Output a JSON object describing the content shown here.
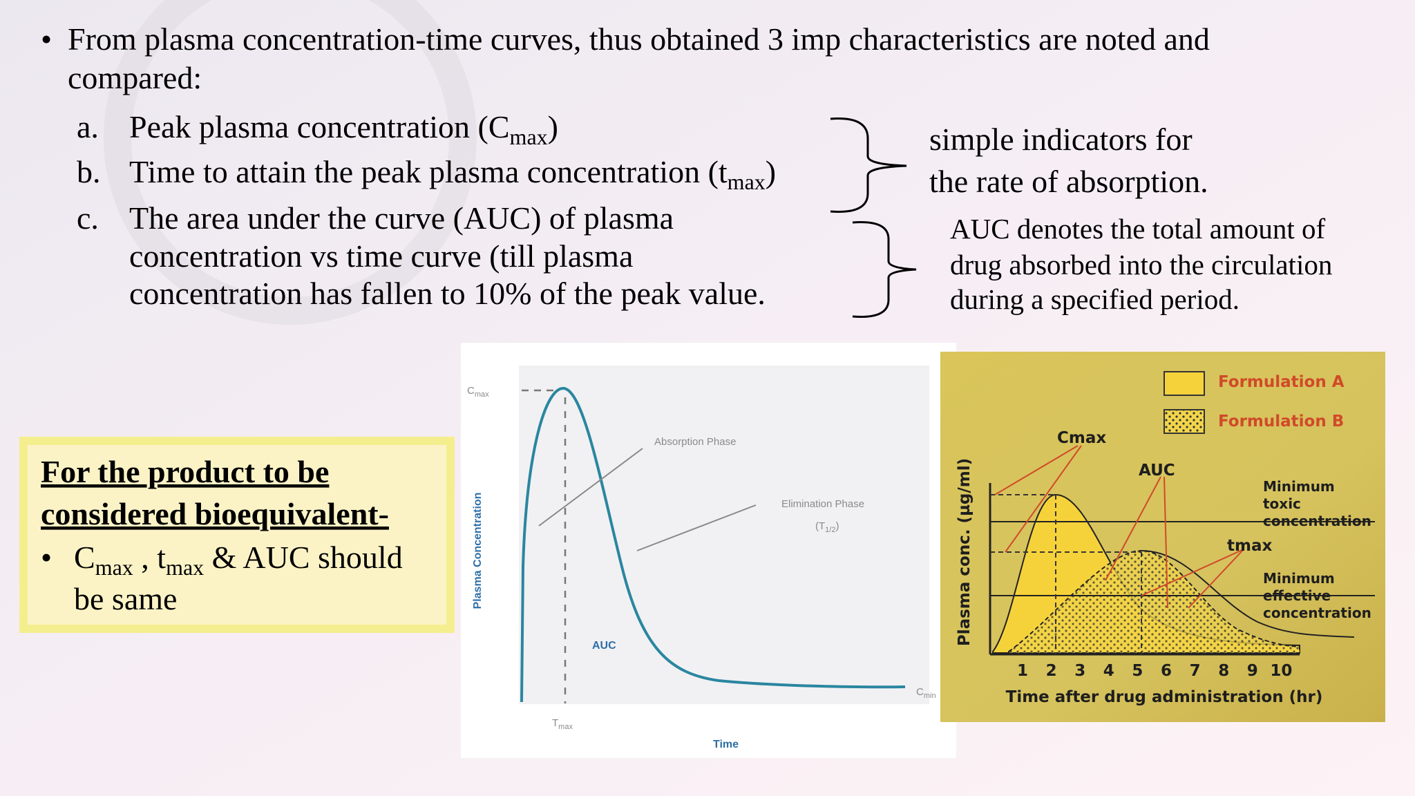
{
  "intro": {
    "bullet": "•",
    "lines": [
      "From plasma concentration-time curves, thus obtained 3 imp characteristics are noted and",
      "compared:"
    ]
  },
  "items": [
    {
      "marker": "a.",
      "text": "Peak plasma concentration (C",
      "sub": "max",
      "close": ")"
    },
    {
      "marker": "b.",
      "text": "Time to attain the peak plasma concentration (t",
      "sub": "max",
      "close": ")"
    },
    {
      "marker": "c.",
      "lines": [
        "The area under the curve (AUC) of plasma",
        "concentration vs time curve (till plasma",
        "concentration has fallen to 10% of the peak value."
      ]
    }
  ],
  "notes": {
    "rate": [
      "simple indicators for",
      "the rate of absorption."
    ],
    "auc": [
      "AUC denotes the total amount of",
      "drug absorbed into the circulation",
      "during a specified period."
    ]
  },
  "box": {
    "heading": [
      "For the product to be",
      "considered bioequivalent-"
    ],
    "bullet": "•",
    "c": "C",
    "sub1": "max",
    "mid": " , t",
    "sub2": "max",
    "rest": " & AUC should",
    "line2": "be same"
  },
  "figure1": {
    "cmax": "C",
    "cmax_sub": "max",
    "absorption": "Absorption Phase",
    "elimination": "Elimination Phase",
    "half_open": "(T",
    "half_sub": "1/2",
    "half_close": ")",
    "y_label": "Plasma Concentration",
    "auc": "AUC",
    "tmax": "T",
    "tmax_sub": "max",
    "x_label": "Time",
    "cmin": "C",
    "cmin_sub": "min"
  },
  "figure2": {
    "legend": [
      "Formulation A",
      "Formulation B"
    ],
    "cmax": "Cmax",
    "auc": "AUC",
    "tmax": "tmax",
    "toxic": [
      "Minimum",
      "toxic",
      "concentration"
    ],
    "effective": [
      "Minimum",
      "effective",
      "concentration"
    ],
    "y_label": "Plasma conc. (µg/ml)",
    "x_ticks": [
      1,
      2,
      3,
      4,
      5,
      6,
      7,
      8,
      9,
      10
    ],
    "x_label": "Time after drug administration (hr)"
  }
}
